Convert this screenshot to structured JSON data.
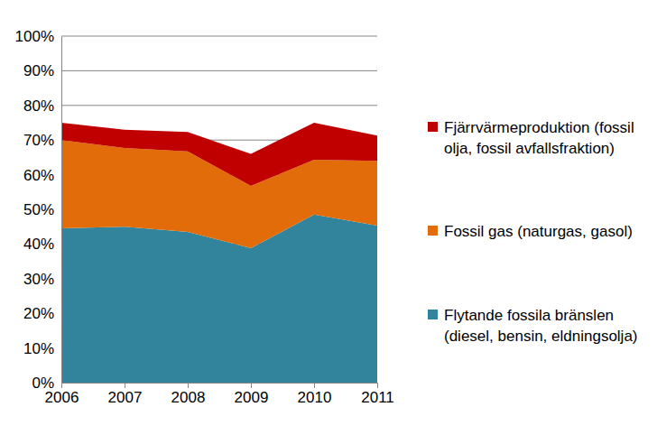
{
  "chart_data": {
    "type": "area",
    "stacked": true,
    "grid": true,
    "legend": "right",
    "x": [
      2006,
      2007,
      2008,
      2009,
      2010,
      2011
    ],
    "xlim": [
      2006,
      2011
    ],
    "xticks": [
      2006,
      2007,
      2008,
      2009,
      2010,
      2011
    ],
    "ylim": [
      0,
      100
    ],
    "yticks": [
      {
        "value": 0,
        "label": "0%"
      },
      {
        "value": 10,
        "label": "10%"
      },
      {
        "value": 20,
        "label": "20%"
      },
      {
        "value": 30,
        "label": "30%"
      },
      {
        "value": 40,
        "label": "40%"
      },
      {
        "value": 50,
        "label": "50%"
      },
      {
        "value": 60,
        "label": "60%"
      },
      {
        "value": 70,
        "label": "70%"
      },
      {
        "value": 80,
        "label": "80%"
      },
      {
        "value": 90,
        "label": "90%"
      },
      {
        "value": 100,
        "label": "100%"
      }
    ],
    "series": [
      {
        "name": "Flytande fossila bränslen (diesel, bensin, eldningsolja)",
        "color": "#31849b",
        "values": [
          44.5,
          45,
          43.5,
          38.8,
          48.5,
          45.3
        ]
      },
      {
        "name": "Fossil gas (naturgas, gasol)",
        "color": "#e36c0a",
        "values": [
          25.5,
          22.7,
          23.2,
          18,
          15.8,
          18.7
        ]
      },
      {
        "name": "Fjärrvärmeproduktion (fossil olja, fossil avfallsfraktion)",
        "color": "#c00000",
        "values": [
          5,
          5.3,
          5.6,
          9.2,
          10.7,
          7.3
        ]
      }
    ]
  }
}
